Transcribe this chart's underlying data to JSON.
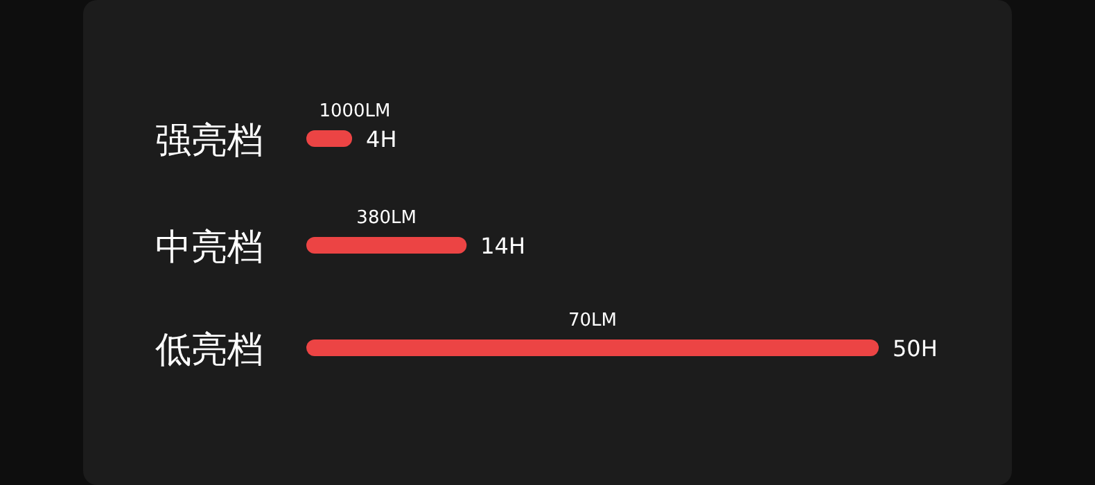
{
  "chart_data": {
    "type": "bar",
    "orientation": "horizontal",
    "categories": [
      "强亮档",
      "中亮档",
      "低亮档"
    ],
    "values": [
      4,
      14,
      50
    ],
    "value_labels": [
      "4H",
      "14H",
      "50H"
    ],
    "color": "#ec4444",
    "annotations": [
      "1000LM",
      "380LM",
      "70LM"
    ]
  }
}
